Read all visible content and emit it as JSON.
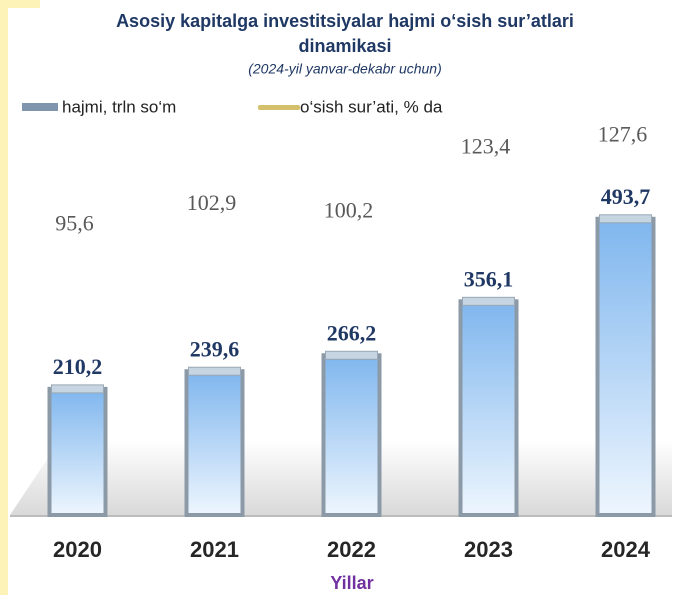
{
  "chart_data": {
    "type": "bar",
    "title": [
      "Asosiy kapitalga investitsiyalar hajmi o‘sish sur’atlari",
      "dinamikasi"
    ],
    "subtitle": "(2024-yil yanvar-dekabr uchun)",
    "x_label": "Yillar",
    "categories": [
      "2020",
      "2021",
      "2022",
      "2023",
      "2024"
    ],
    "series": [
      {
        "name": "hajmi, trln so‘m",
        "color": "#a9d0f5",
        "values": [
          210.2,
          239.6,
          266.2,
          356.1,
          493.7
        ],
        "value_labels": [
          "210,2",
          "239,6",
          "266,2",
          "356,1",
          "493,7"
        ]
      },
      {
        "name": "o‘sish sur’ati, % da",
        "color": "#d4c06a",
        "axis": "y2",
        "values": [
          95.6,
          102.9,
          100.2,
          123.4,
          127.6
        ],
        "value_labels": [
          "95,6",
          "102,9",
          "100,2",
          "123,4",
          "127,6"
        ]
      }
    ],
    "ylim": [
      0,
      600
    ],
    "y2lim": [
      0,
      130
    ]
  }
}
